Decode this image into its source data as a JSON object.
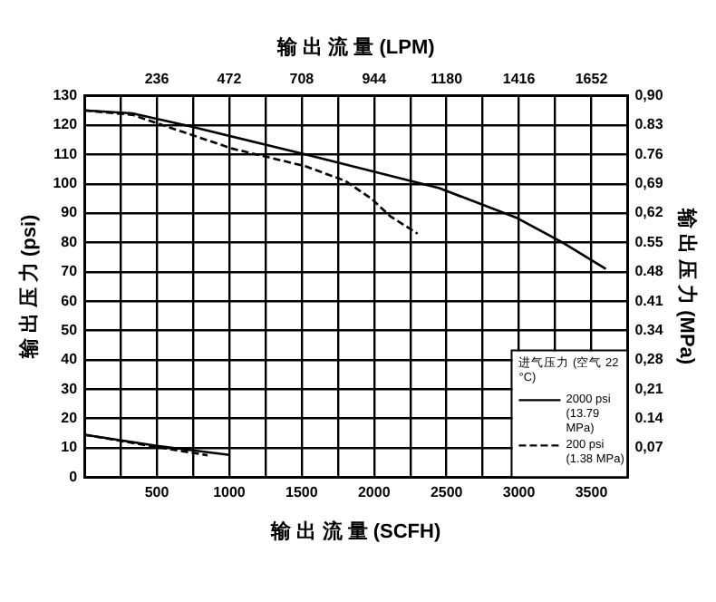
{
  "chart_data": {
    "type": "line",
    "xlabel": "输 出 流 量 (SCFH)",
    "x2label": "输 出 流 量 (LPM)",
    "ylabel": "输 出 压 力 (psi)",
    "y2label": "输 出 压 力 (MPa)",
    "legend_title": "进气压力 (空气 22 °C)",
    "xlim": [
      0,
      3750
    ],
    "xticks": [
      {
        "value": 250,
        "label": null
      },
      500,
      {
        "value": 750,
        "label": null
      },
      1000,
      {
        "value": 1250,
        "label": null
      },
      1500,
      {
        "value": 1750,
        "label": null
      },
      2000,
      {
        "value": 2250,
        "label": null
      },
      2500,
      {
        "value": 2750,
        "label": null
      },
      3000,
      {
        "value": 3250,
        "label": null
      },
      3500
    ],
    "x2lim": [
      0,
      1770
    ],
    "x2ticks": [
      236,
      472,
      708,
      944,
      1180,
      1416,
      1652
    ],
    "ylim": [
      0,
      130
    ],
    "yticks": [
      0,
      10,
      20,
      30,
      40,
      50,
      60,
      70,
      80,
      90,
      100,
      110,
      120,
      130
    ],
    "y2lim": [
      0,
      0.8963
    ],
    "y2ticks": [
      {
        "value": 0.0689,
        "label": "0,07"
      },
      {
        "value": 0.1379,
        "label": "0.14"
      },
      {
        "value": 0.2068,
        "label": "0,21"
      },
      {
        "value": 0.2758,
        "label": "0,28"
      },
      {
        "value": 0.3447,
        "label": "0.34"
      },
      {
        "value": 0.4137,
        "label": "0.41"
      },
      {
        "value": 0.4826,
        "label": "0.48"
      },
      {
        "value": 0.5516,
        "label": "0.55"
      },
      {
        "value": 0.6205,
        "label": "0,62"
      },
      {
        "value": 0.6895,
        "label": "0,69"
      },
      {
        "value": 0.7584,
        "label": "0.76"
      },
      {
        "value": 0.8274,
        "label": "0.83"
      },
      {
        "value": 0.8963,
        "label": "0,90"
      }
    ],
    "grid": true,
    "legend": "bottom right",
    "marker": "none",
    "series": [
      {
        "name": "2000 psi (13.79 MPa)",
        "color": "#000000",
        "line_style": "solid",
        "x": [
          0,
          330,
          735,
          1525,
          2450,
          2980,
          3300,
          3600
        ],
        "values": [
          125,
          124,
          119.5,
          110,
          98.5,
          88.5,
          80,
          71
        ]
      },
      {
        "name": "200 psi (1.38 MPa)",
        "color": "#000000",
        "line_style": "dashed",
        "x": [
          0,
          330,
          1020,
          1525,
          1800,
          1980,
          2110,
          2300
        ],
        "values": [
          125,
          123.5,
          112,
          106,
          101,
          95,
          89,
          83
        ]
      },
      {
        "color": "#000000",
        "line_style": "solid",
        "x": [
          0,
          500,
          1000
        ],
        "values": [
          14.5,
          10.7,
          7.6
        ]
      },
      {
        "color": "#000000",
        "line_style": "dashed",
        "x": [
          0,
          500,
          850
        ],
        "values": [
          14.5,
          10.3,
          7.5
        ]
      }
    ]
  }
}
